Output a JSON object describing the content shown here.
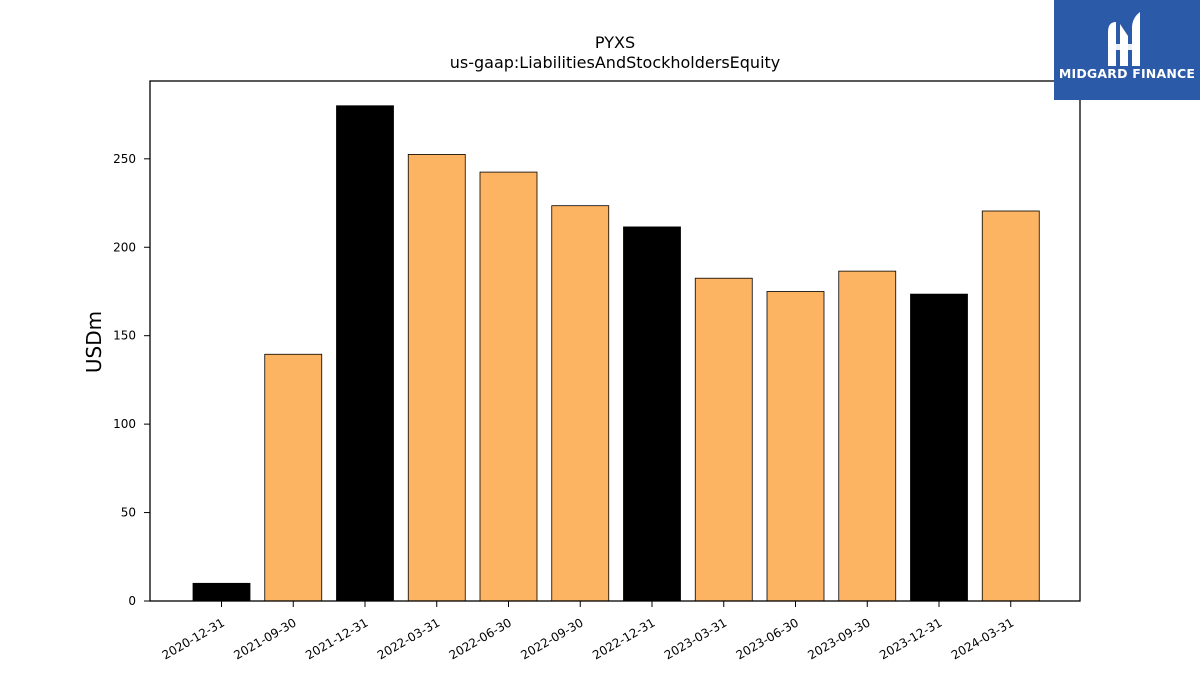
{
  "chart_data": {
    "type": "bar",
    "title": "PYXS",
    "subtitle": "us-gaap:LiabilitiesAndStockholdersEquity",
    "ylabel": "USDm",
    "xlabel": "",
    "ylim": [
      0,
      294
    ],
    "yticks": [
      0,
      50,
      100,
      150,
      200,
      250
    ],
    "grid": false,
    "categories": [
      "2020-12-31",
      "2021-09-30",
      "2021-12-31",
      "2022-03-31",
      "2022-06-30",
      "2022-09-30",
      "2022-12-31",
      "2023-03-31",
      "2023-06-30",
      "2023-09-30",
      "2023-12-31",
      "2024-03-31"
    ],
    "values": [
      10,
      139.5,
      280,
      252.5,
      242.5,
      223.5,
      211.5,
      182.5,
      175,
      186.5,
      173.5,
      220.5
    ],
    "bar_colors": [
      "#000000",
      "#fdb462",
      "#000000",
      "#fdb462",
      "#fdb462",
      "#fdb462",
      "#000000",
      "#fdb462",
      "#fdb462",
      "#fdb462",
      "#000000",
      "#fdb462"
    ],
    "edge_color": "#000000"
  },
  "logo": {
    "text": "MIDGARD FINANCE",
    "background": "#2b5aa8",
    "foreground": "#ffffff"
  }
}
